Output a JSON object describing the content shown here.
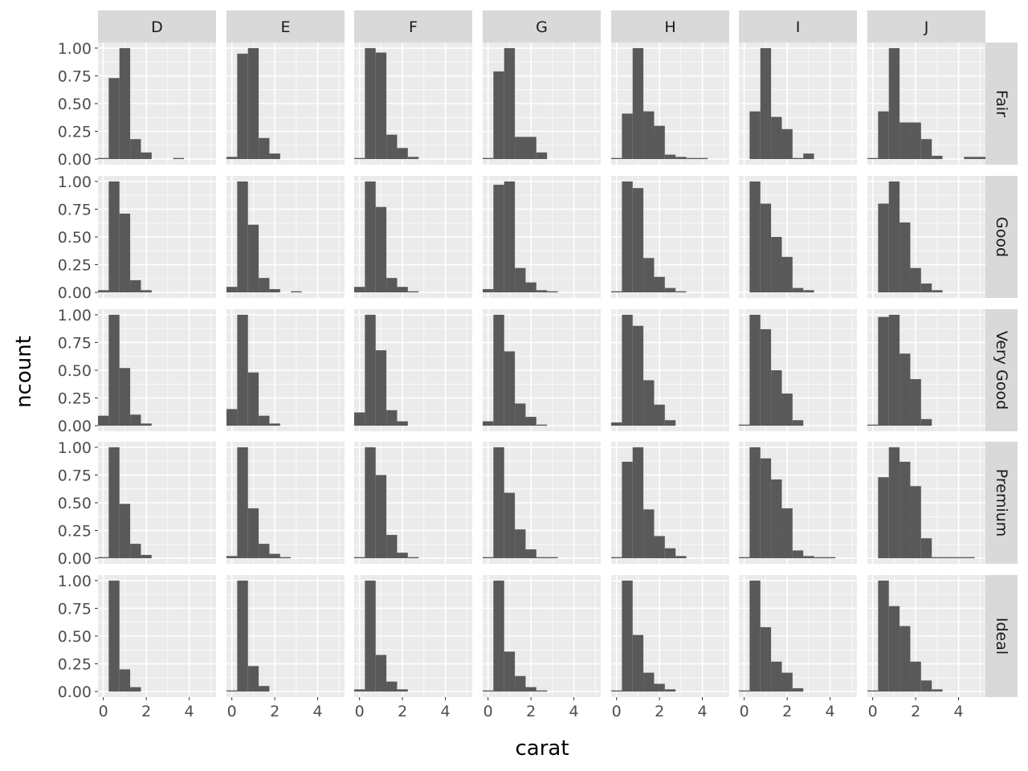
{
  "chart_data": {
    "type": "bar",
    "subtype": "histogram-facet-grid",
    "xlabel": "carat",
    "ylabel": "ncount",
    "col_facets": [
      "D",
      "E",
      "F",
      "G",
      "H",
      "I",
      "J"
    ],
    "row_facets": [
      "Fair",
      "Good",
      "Very Good",
      "Premium",
      "Ideal"
    ],
    "xlim": [
      -0.25,
      5.25
    ],
    "ylim": [
      -0.05,
      1.05
    ],
    "x_ticks": [
      0,
      2,
      4
    ],
    "x_tick_labels": [
      "0",
      "2",
      "4"
    ],
    "y_ticks": [
      0,
      0.25,
      0.5,
      0.75,
      1
    ],
    "y_tick_labels": [
      "0.00",
      "0.25",
      "0.50",
      "0.75",
      "1.00"
    ],
    "bin_edges": [
      -0.25,
      0.25,
      0.75,
      1.25,
      1.75,
      2.25,
      2.75,
      3.25,
      3.75,
      4.25,
      4.75,
      5.25
    ],
    "panels": [
      {
        "row": "Fair",
        "col": "D",
        "values": [
          0.01,
          0.73,
          1.0,
          0.18,
          0.06,
          0.0,
          0.0,
          0.01,
          0.0,
          0.0,
          0.0
        ]
      },
      {
        "row": "Fair",
        "col": "E",
        "values": [
          0.02,
          0.95,
          1.0,
          0.19,
          0.05,
          0.0,
          0.0,
          0.0,
          0.0,
          0.0,
          0.0
        ]
      },
      {
        "row": "Fair",
        "col": "F",
        "values": [
          0.01,
          1.0,
          0.96,
          0.22,
          0.1,
          0.02,
          0.0,
          0.0,
          0.0,
          0.0,
          0.0
        ]
      },
      {
        "row": "Fair",
        "col": "G",
        "values": [
          0.01,
          0.79,
          1.0,
          0.2,
          0.2,
          0.06,
          0.0,
          0.0,
          0.0,
          0.0,
          0.0
        ]
      },
      {
        "row": "Fair",
        "col": "H",
        "values": [
          0.01,
          0.41,
          1.0,
          0.43,
          0.3,
          0.04,
          0.02,
          0.01,
          0.01,
          0.0,
          0.0
        ]
      },
      {
        "row": "Fair",
        "col": "I",
        "values": [
          0.0,
          0.43,
          1.0,
          0.38,
          0.27,
          0.01,
          0.05,
          0.0,
          0.0,
          0.0,
          0.0
        ]
      },
      {
        "row": "Fair",
        "col": "J",
        "values": [
          0.01,
          0.43,
          1.0,
          0.33,
          0.33,
          0.18,
          0.03,
          0.0,
          0.0,
          0.02,
          0.02
        ]
      },
      {
        "row": "Good",
        "col": "D",
        "values": [
          0.02,
          1.0,
          0.71,
          0.11,
          0.02,
          0.0,
          0.0,
          0.0,
          0.0,
          0.0,
          0.0
        ]
      },
      {
        "row": "Good",
        "col": "E",
        "values": [
          0.05,
          1.0,
          0.61,
          0.13,
          0.03,
          0.0,
          0.01,
          0.0,
          0.0,
          0.0,
          0.0
        ]
      },
      {
        "row": "Good",
        "col": "F",
        "values": [
          0.05,
          1.0,
          0.77,
          0.13,
          0.05,
          0.01,
          0.0,
          0.0,
          0.0,
          0.0,
          0.0
        ]
      },
      {
        "row": "Good",
        "col": "G",
        "values": [
          0.03,
          0.97,
          1.0,
          0.22,
          0.09,
          0.02,
          0.01,
          0.0,
          0.0,
          0.0,
          0.0
        ]
      },
      {
        "row": "Good",
        "col": "H",
        "values": [
          0.01,
          1.0,
          0.94,
          0.31,
          0.14,
          0.04,
          0.01,
          0.0,
          0.0,
          0.0,
          0.0
        ]
      },
      {
        "row": "Good",
        "col": "I",
        "values": [
          0.0,
          1.0,
          0.8,
          0.5,
          0.32,
          0.04,
          0.02,
          0.0,
          0.0,
          0.0,
          0.0
        ]
      },
      {
        "row": "Good",
        "col": "J",
        "values": [
          0.0,
          0.8,
          1.0,
          0.63,
          0.22,
          0.08,
          0.02,
          0.0,
          0.0,
          0.0,
          0.0
        ]
      },
      {
        "row": "Very Good",
        "col": "D",
        "values": [
          0.09,
          1.0,
          0.52,
          0.1,
          0.02,
          0.0,
          0.0,
          0.0,
          0.0,
          0.0,
          0.0
        ]
      },
      {
        "row": "Very Good",
        "col": "E",
        "values": [
          0.15,
          1.0,
          0.48,
          0.09,
          0.02,
          0.0,
          0.0,
          0.0,
          0.0,
          0.0,
          0.0
        ]
      },
      {
        "row": "Very Good",
        "col": "F",
        "values": [
          0.12,
          1.0,
          0.68,
          0.14,
          0.04,
          0.0,
          0.0,
          0.0,
          0.0,
          0.0,
          0.0
        ]
      },
      {
        "row": "Very Good",
        "col": "G",
        "values": [
          0.04,
          1.0,
          0.67,
          0.2,
          0.08,
          0.01,
          0.0,
          0.0,
          0.0,
          0.0,
          0.0
        ]
      },
      {
        "row": "Very Good",
        "col": "H",
        "values": [
          0.03,
          1.0,
          0.9,
          0.41,
          0.19,
          0.05,
          0.0,
          0.0,
          0.0,
          0.0,
          0.0
        ]
      },
      {
        "row": "Very Good",
        "col": "I",
        "values": [
          0.01,
          1.0,
          0.87,
          0.5,
          0.29,
          0.05,
          0.0,
          0.0,
          0.0,
          0.0,
          0.0
        ]
      },
      {
        "row": "Very Good",
        "col": "J",
        "values": [
          0.01,
          0.98,
          1.0,
          0.65,
          0.42,
          0.06,
          0.0,
          0.0,
          0.0,
          0.0,
          0.0
        ]
      },
      {
        "row": "Premium",
        "col": "D",
        "values": [
          0.01,
          1.0,
          0.49,
          0.13,
          0.03,
          0.0,
          0.0,
          0.0,
          0.0,
          0.0,
          0.0
        ]
      },
      {
        "row": "Premium",
        "col": "E",
        "values": [
          0.02,
          1.0,
          0.45,
          0.13,
          0.04,
          0.01,
          0.0,
          0.0,
          0.0,
          0.0,
          0.0
        ]
      },
      {
        "row": "Premium",
        "col": "F",
        "values": [
          0.01,
          1.0,
          0.75,
          0.21,
          0.05,
          0.01,
          0.0,
          0.0,
          0.0,
          0.0,
          0.0
        ]
      },
      {
        "row": "Premium",
        "col": "G",
        "values": [
          0.01,
          1.0,
          0.59,
          0.26,
          0.08,
          0.01,
          0.01,
          0.0,
          0.0,
          0.0,
          0.0
        ]
      },
      {
        "row": "Premium",
        "col": "H",
        "values": [
          0.01,
          0.87,
          1.0,
          0.44,
          0.2,
          0.09,
          0.02,
          0.0,
          0.0,
          0.0,
          0.0
        ]
      },
      {
        "row": "Premium",
        "col": "I",
        "values": [
          0.01,
          1.0,
          0.9,
          0.71,
          0.45,
          0.07,
          0.02,
          0.01,
          0.01,
          0.0,
          0.0
        ]
      },
      {
        "row": "Premium",
        "col": "J",
        "values": [
          0.0,
          0.73,
          1.0,
          0.87,
          0.65,
          0.18,
          0.01,
          0.01,
          0.01,
          0.01,
          0.0
        ]
      },
      {
        "row": "Ideal",
        "col": "D",
        "values": [
          0.0,
          1.0,
          0.2,
          0.04,
          0.0,
          0.0,
          0.0,
          0.0,
          0.0,
          0.0,
          0.0
        ]
      },
      {
        "row": "Ideal",
        "col": "E",
        "values": [
          0.01,
          1.0,
          0.23,
          0.05,
          0.0,
          0.0,
          0.0,
          0.0,
          0.0,
          0.0,
          0.0
        ]
      },
      {
        "row": "Ideal",
        "col": "F",
        "values": [
          0.02,
          1.0,
          0.33,
          0.09,
          0.02,
          0.0,
          0.0,
          0.0,
          0.0,
          0.0,
          0.0
        ]
      },
      {
        "row": "Ideal",
        "col": "G",
        "values": [
          0.01,
          1.0,
          0.36,
          0.14,
          0.04,
          0.01,
          0.0,
          0.0,
          0.0,
          0.0,
          0.0
        ]
      },
      {
        "row": "Ideal",
        "col": "H",
        "values": [
          0.01,
          1.0,
          0.51,
          0.17,
          0.07,
          0.02,
          0.0,
          0.0,
          0.0,
          0.0,
          0.0
        ]
      },
      {
        "row": "Ideal",
        "col": "I",
        "values": [
          0.01,
          1.0,
          0.58,
          0.27,
          0.17,
          0.03,
          0.0,
          0.0,
          0.0,
          0.0,
          0.0
        ]
      },
      {
        "row": "Ideal",
        "col": "J",
        "values": [
          0.01,
          1.0,
          0.77,
          0.59,
          0.27,
          0.1,
          0.02,
          0.0,
          0.0,
          0.0,
          0.0
        ]
      }
    ],
    "grid": true,
    "colors": {
      "bar_fill": "#595959",
      "panel_bg": "#ebebeb",
      "grid_major": "#ffffff",
      "strip_bg": "#d9d9d9",
      "tick_color": "#333333"
    }
  }
}
